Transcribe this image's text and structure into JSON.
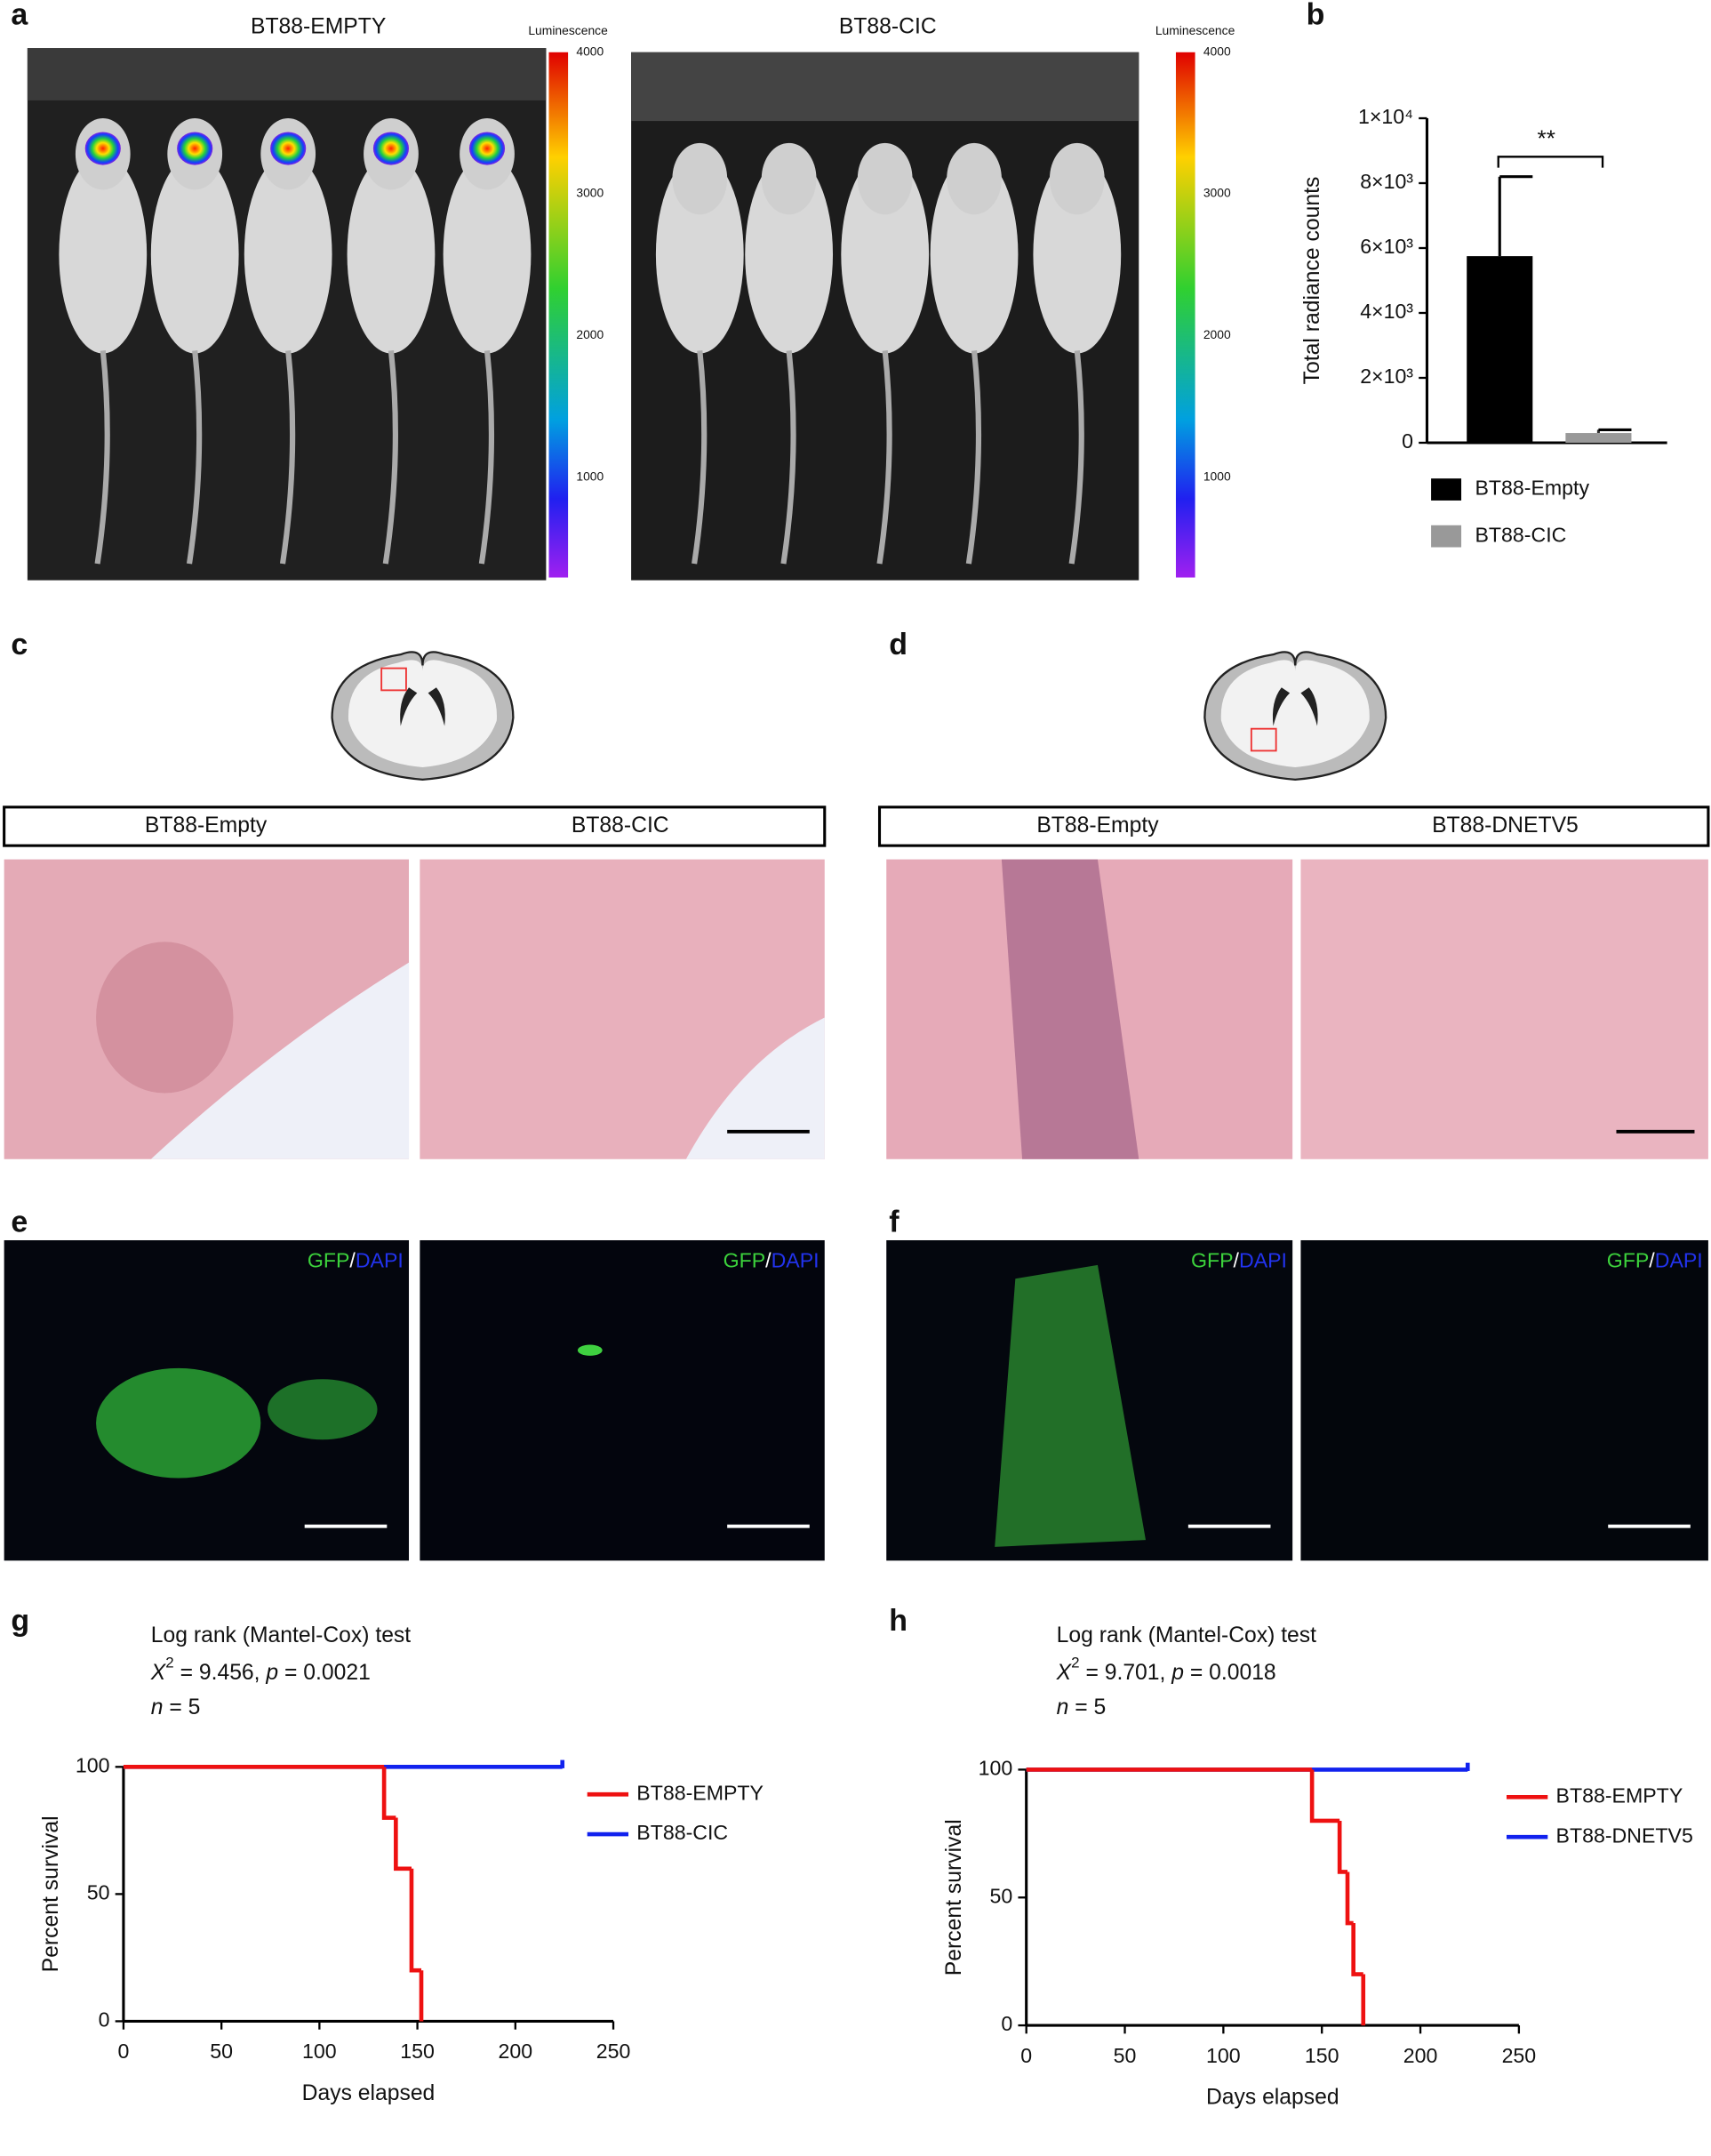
{
  "figure": {
    "letters": [
      "a",
      "b",
      "c",
      "d",
      "e",
      "f",
      "g",
      "h"
    ],
    "a": {
      "titles": [
        "BT88-EMPTY",
        "BT88-CIC"
      ],
      "colorbar": {
        "label": "Luminescence",
        "ticks": [
          4000,
          3000,
          2000,
          1000
        ]
      }
    },
    "c": {
      "headers": [
        "BT88-Empty",
        "BT88-CIC"
      ]
    },
    "d": {
      "headers": [
        "BT88-Empty",
        "BT88-DNETV5"
      ]
    },
    "stain": [
      "GFP",
      "/",
      "DAPI"
    ]
  },
  "chart_data": [
    {
      "type": "bar",
      "ylabel": "Total radiance counts",
      "ylim": [
        0,
        10000
      ],
      "yticks": [
        0,
        {
          "value": 2000,
          "label": "2×10³"
        },
        {
          "value": 4000,
          "label": "4×10³"
        },
        {
          "value": 6000,
          "label": "6×10³"
        },
        {
          "value": 8000,
          "label": "8×10³"
        },
        {
          "value": 10000,
          "label": "1×10⁴"
        }
      ],
      "series": [
        {
          "name": "BT88-Empty",
          "color": "#000000",
          "values": [
            5750
          ],
          "errors": [
            2450
          ]
        },
        {
          "name": "BT88-CIC",
          "color": "#999999",
          "values": [
            300
          ],
          "errors": [
            100
          ]
        }
      ],
      "annotation": "**"
    },
    {
      "type": "line",
      "step": true,
      "title": "Log rank (Mantel-Cox) test",
      "stat": [
        "X",
        "2",
        " = 9.456, ",
        "p",
        " = 0.0021"
      ],
      "n": [
        "n",
        " = 5"
      ],
      "xlabel": "Days elapsed",
      "ylabel": "Percent survival",
      "xlim": [
        0,
        250
      ],
      "xticks": [
        0,
        50,
        100,
        150,
        200,
        250
      ],
      "ylim": [
        0,
        100
      ],
      "yticks": [
        0,
        50,
        100
      ],
      "series": [
        {
          "name": "BT88-EMPTY",
          "color": "#ee1111",
          "x": [
            0,
            133,
            139,
            147,
            152
          ],
          "values": [
            100,
            80,
            60,
            20,
            0
          ]
        },
        {
          "name": "BT88-CIC",
          "color": "#1122ee",
          "x": [
            0,
            224
          ],
          "values": [
            100,
            100
          ]
        }
      ]
    },
    {
      "type": "line",
      "step": true,
      "title": "Log rank (Mantel-Cox) test",
      "stat": [
        "X",
        "2",
        " = 9.701, ",
        "p",
        " = 0.0018"
      ],
      "n": [
        "n",
        " = 5"
      ],
      "xlabel": "Days elapsed",
      "ylabel": "Percent survival",
      "xlim": [
        0,
        250
      ],
      "xticks": [
        0,
        50,
        100,
        150,
        200,
        250
      ],
      "ylim": [
        0,
        100
      ],
      "yticks": [
        0,
        50,
        100
      ],
      "series": [
        {
          "name": "BT88-EMPTY",
          "color": "#ee1111",
          "x": [
            0,
            145,
            159,
            163,
            166,
            171
          ],
          "values": [
            100,
            80,
            60,
            40,
            20,
            0
          ]
        },
        {
          "name": "BT88-DNETV5",
          "color": "#1122ee",
          "x": [
            0,
            224
          ],
          "values": [
            100,
            100
          ]
        }
      ]
    }
  ]
}
